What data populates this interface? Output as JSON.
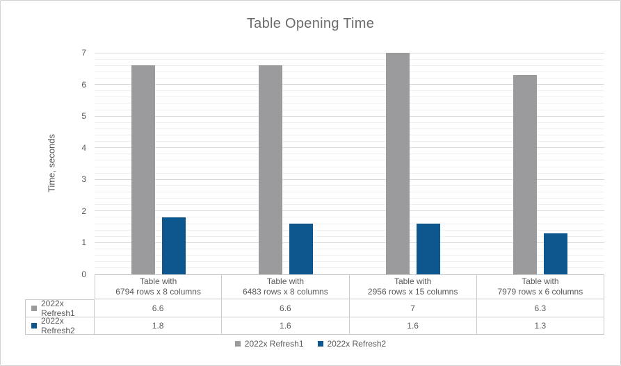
{
  "window": {
    "background": "#ffffff",
    "border_color": "#d2d2d2"
  },
  "chart_data": {
    "type": "bar",
    "title": "Table Opening Time",
    "xlabel": "",
    "ylabel": "Time, seconds",
    "ylim": [
      0,
      7
    ],
    "y_ticks": [
      0,
      1,
      2,
      3,
      4,
      5,
      6,
      7
    ],
    "y_minor_step": 0.2,
    "grid": "major-and-minor horizontal",
    "legend_position": "bottom",
    "show_data_table": true,
    "categories": [
      {
        "line1": "Table with",
        "line2": "6794 rows x 8 columns"
      },
      {
        "line1": "Table with",
        "line2": "6483 rows x 8 columns"
      },
      {
        "line1": "Table with",
        "line2": "2956 rows x 15 columns"
      },
      {
        "line1": "Table with",
        "line2": "7979 rows x 6 columns"
      }
    ],
    "series": [
      {
        "name": "2022x Refresh1",
        "color": "#9b9b9d",
        "values": [
          6.6,
          6.6,
          7,
          6.3
        ]
      },
      {
        "name": "2022x Refresh2",
        "color": "#0e578e",
        "values": [
          1.8,
          1.6,
          1.6,
          1.3
        ]
      }
    ],
    "colors": {
      "title_text": "#6b6b6b",
      "axis_text": "#595959",
      "grid_major": "#d8d8d8",
      "grid_minor": "#efefef",
      "table_border": "#c9c9c9"
    }
  }
}
